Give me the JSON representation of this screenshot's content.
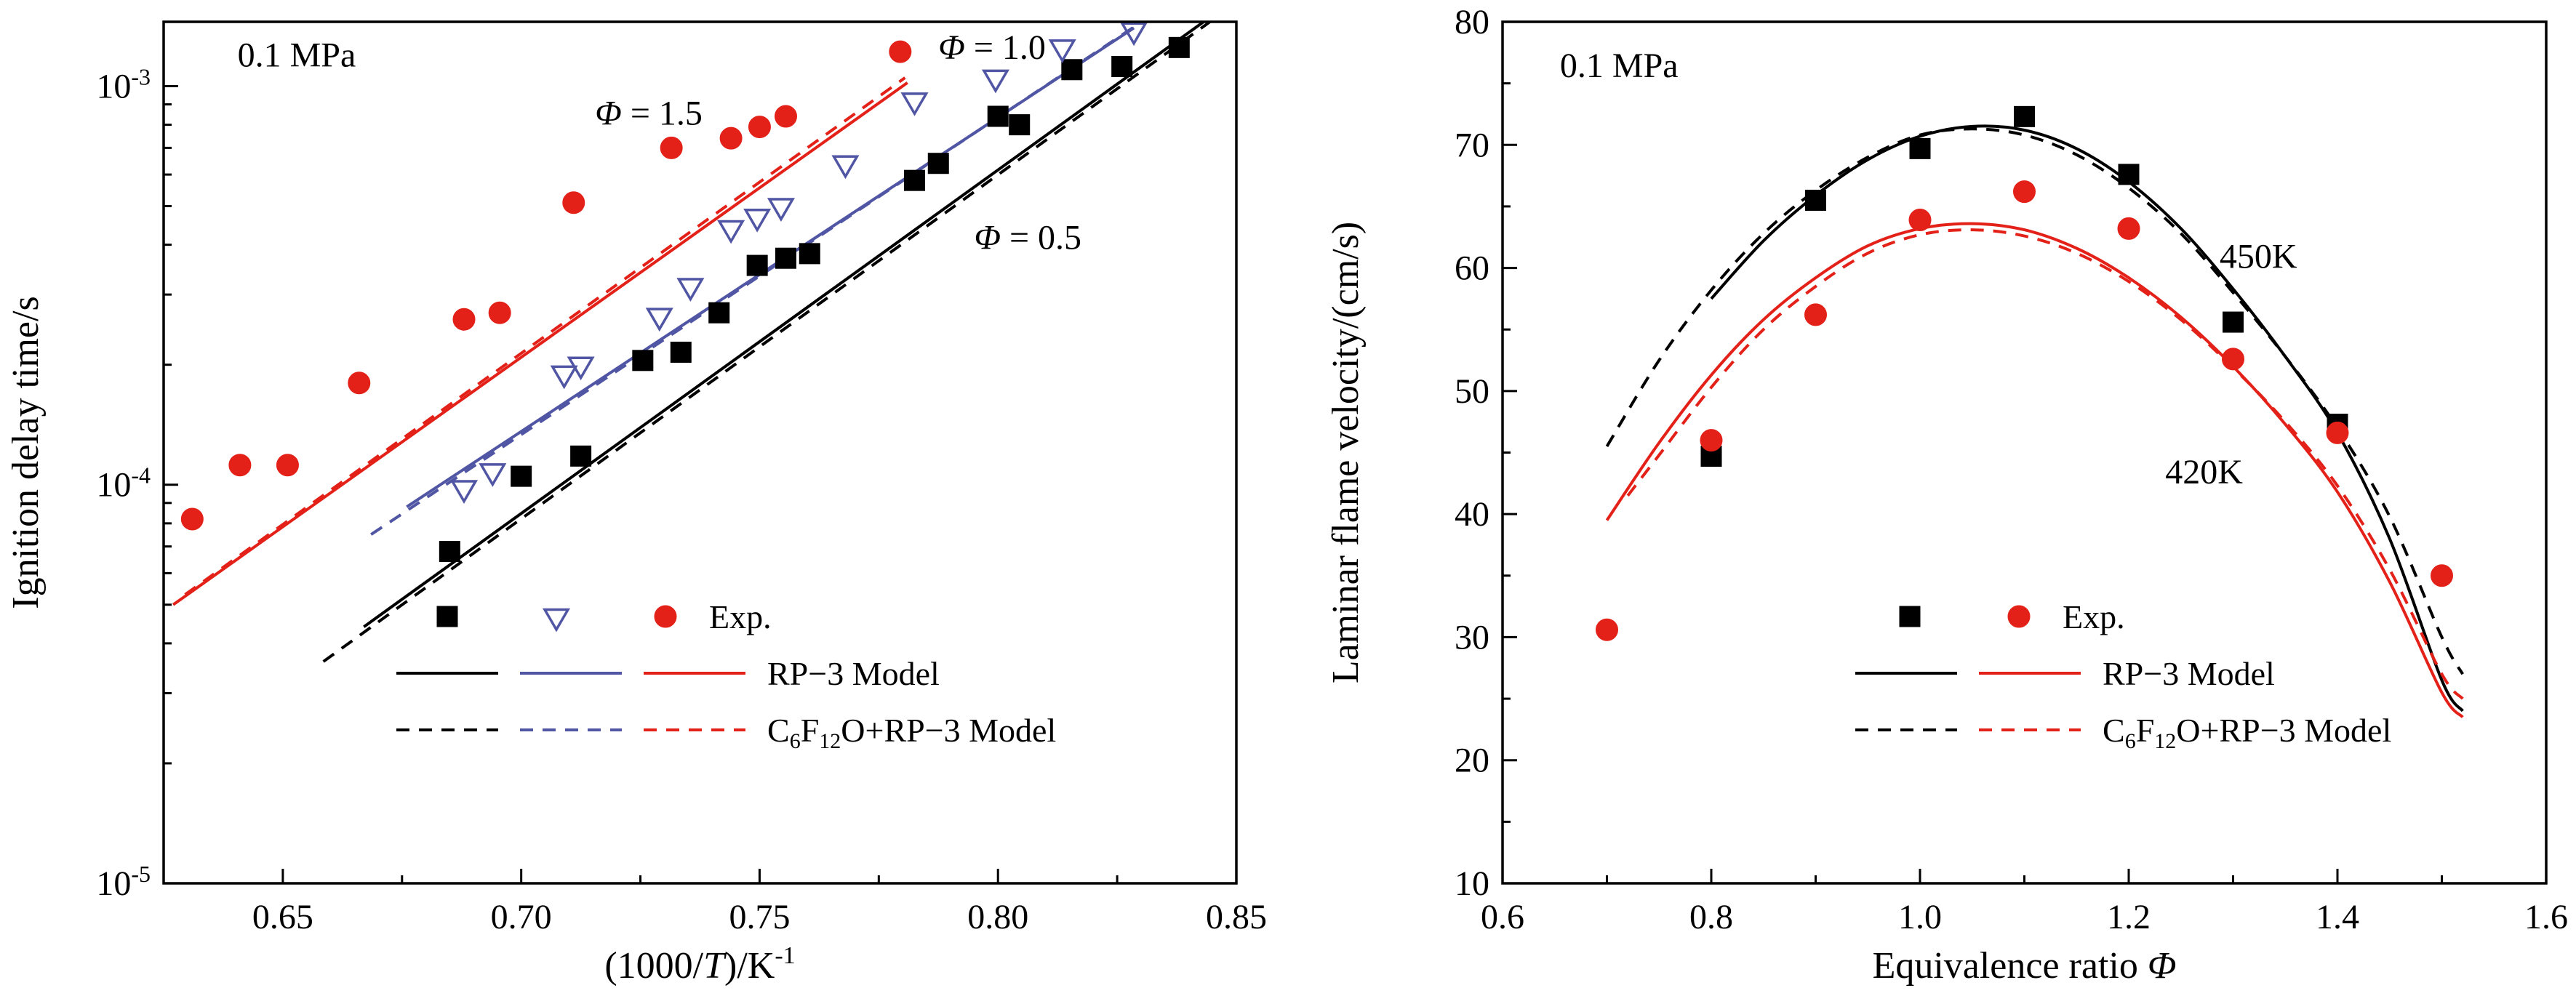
{
  "figure": {
    "background": "#ffffff"
  },
  "chart_data": [
    {
      "name": "ignition-delay",
      "type": "line+scatter",
      "x_axis": {
        "scale": "linear",
        "min": 0.625,
        "max": 0.85,
        "major_ticks": [
          0.65,
          0.7,
          0.75,
          0.8,
          0.85
        ],
        "tick_labels": [
          "0.65",
          "0.70",
          "0.75",
          "0.80",
          "0.85"
        ],
        "minor_ticks": [
          0.675,
          0.725,
          0.775,
          0.825
        ],
        "label": "(1000/*T*)/K^{-1}"
      },
      "y_axis": {
        "scale": "log",
        "min": 1e-05,
        "max": 0.00145,
        "major_ticks": [
          1e-05,
          0.0001,
          0.001
        ],
        "tick_labels": [
          "10^{-5}",
          "10^{-4}",
          "10^{-3}"
        ],
        "minor_ticks": [
          2e-05,
          3e-05,
          4e-05,
          5e-05,
          6e-05,
          7e-05,
          8e-05,
          9e-05,
          0.0002,
          0.0003,
          0.0004,
          0.0005,
          0.0006,
          0.0007,
          0.0008,
          0.0009
        ],
        "label": "Ignition delay time/s"
      },
      "series": [
        {
          "name": "phi05-rp3-model",
          "type": "line",
          "color": "#000000",
          "dash": "solid",
          "smooth": false,
          "points": [
            [
              0.667,
              4.4e-05
            ],
            [
              0.8455,
              0.00152
            ]
          ]
        },
        {
          "name": "phi05-c6f12o-model",
          "type": "line",
          "color": "#000000",
          "dash": "dashed",
          "smooth": false,
          "points": [
            [
              0.6585,
              3.6e-05
            ],
            [
              0.8455,
              0.00148
            ]
          ]
        },
        {
          "name": "phi10-rp3-model",
          "type": "line",
          "color": "#5056a4",
          "dash": "solid",
          "smooth": false,
          "points": [
            [
              0.676,
              8.8e-05
            ],
            [
              0.8285,
              0.0014
            ]
          ]
        },
        {
          "name": "phi10-c6f12o-model",
          "type": "line",
          "color": "#5056a4",
          "dash": "dashed",
          "smooth": false,
          "points": [
            [
              0.6685,
              7.5e-05
            ],
            [
              0.829,
              0.00142
            ]
          ]
        },
        {
          "name": "phi15-rp3-model",
          "type": "line",
          "color": "#e32119",
          "dash": "solid",
          "smooth": false,
          "points": [
            [
              0.627,
              5e-05
            ],
            [
              0.781,
              0.00102
            ]
          ]
        },
        {
          "name": "phi15-c6f12o-model",
          "type": "line",
          "color": "#e32119",
          "dash": "dashed",
          "smooth": false,
          "points": [
            [
              0.6295,
              5.3e-05
            ],
            [
              0.7805,
              0.00105
            ]
          ]
        },
        {
          "name": "phi05-exp",
          "type": "scatter",
          "marker": "square",
          "color": "#000000",
          "filled": true,
          "points": [
            [
              0.685,
              6.8e-05
            ],
            [
              0.7,
              0.000105
            ],
            [
              0.7125,
              0.000118
            ],
            [
              0.7255,
              0.000205
            ],
            [
              0.7335,
              0.000215
            ],
            [
              0.7415,
              0.00027
            ],
            [
              0.7495,
              0.000355
            ],
            [
              0.7555,
              0.00037
            ],
            [
              0.7605,
              0.00038
            ],
            [
              0.7825,
              0.00058
            ],
            [
              0.7875,
              0.00064
            ],
            [
              0.8,
              0.00084
            ],
            [
              0.8045,
              0.0008
            ],
            [
              0.8155,
              0.0011
            ],
            [
              0.826,
              0.00112
            ],
            [
              0.838,
              0.00125
            ]
          ]
        },
        {
          "name": "phi10-exp",
          "type": "scatter",
          "marker": "triangle-down",
          "color": "#5056a4",
          "filled": false,
          "points": [
            [
              0.688,
              9.8e-05
            ],
            [
              0.694,
              0.000108
            ],
            [
              0.709,
              0.00019
            ],
            [
              0.7125,
              0.0002
            ],
            [
              0.729,
              0.000265
            ],
            [
              0.7355,
              0.000315
            ],
            [
              0.744,
              0.00044
            ],
            [
              0.7495,
              0.00047
            ],
            [
              0.7545,
              0.0005
            ],
            [
              0.768,
              0.00064
            ],
            [
              0.7825,
              0.00092
            ],
            [
              0.7995,
              0.00105
            ],
            [
              0.8135,
              0.00125
            ],
            [
              0.8285,
              0.00138
            ]
          ]
        },
        {
          "name": "phi15-exp",
          "type": "scatter",
          "marker": "circle",
          "color": "#e32119",
          "filled": true,
          "points": [
            [
              0.631,
              8.2e-05
            ],
            [
              0.641,
              0.000112
            ],
            [
              0.651,
              0.000112
            ],
            [
              0.666,
              0.00018
            ],
            [
              0.688,
              0.00026
            ],
            [
              0.6955,
              0.00027
            ],
            [
              0.711,
              0.00051
            ],
            [
              0.7315,
              0.0007
            ],
            [
              0.744,
              0.00074
            ],
            [
              0.75,
              0.00079
            ],
            [
              0.7555,
              0.00084
            ],
            [
              0.7795,
              0.00122
            ]
          ]
        }
      ],
      "annotations": [
        {
          "text": "0.1 MPa",
          "x": 0.6405,
          "y": 0.00112,
          "color": "#000000"
        },
        {
          "text": "*Φ* = 1.0",
          "x": 0.7875,
          "y": 0.00117,
          "color": "#5056a4"
        },
        {
          "text": "*Φ* = 1.5",
          "x": 0.7155,
          "y": 0.0008,
          "color": "#e32119"
        },
        {
          "text": "*Φ* = 0.5",
          "x": 0.795,
          "y": 0.00039,
          "color": "#000000"
        }
      ],
      "legend": {
        "rows": [
          {
            "y": 848,
            "label": "Exp.",
            "label_x": 975,
            "markers": [
              {
                "marker": "square",
                "color": "#000000",
                "filled": true,
                "x": 615
              },
              {
                "marker": "triangle-down",
                "color": "#5056a4",
                "filled": false,
                "x": 765
              },
              {
                "marker": "circle",
                "color": "#e32119",
                "filled": true,
                "x": 915
              }
            ]
          },
          {
            "y": 926,
            "label": "RP−3 Model",
            "label_x": 1055,
            "lines": [
              {
                "color": "#000000",
                "dash": "solid",
                "x0": 545,
                "x1": 685
              },
              {
                "color": "#5056a4",
                "dash": "solid",
                "x0": 715,
                "x1": 855
              },
              {
                "color": "#e32119",
                "dash": "solid",
                "x0": 885,
                "x1": 1025
              }
            ]
          },
          {
            "y": 1004,
            "label": "C_{6}F_{12}O+RP−3 Model",
            "label_x": 1055,
            "lines": [
              {
                "color": "#000000",
                "dash": "dashed",
                "x0": 545,
                "x1": 685
              },
              {
                "color": "#5056a4",
                "dash": "dashed",
                "x0": 715,
                "x1": 855
              },
              {
                "color": "#e32119",
                "dash": "dashed",
                "x0": 885,
                "x1": 1025
              }
            ]
          }
        ]
      }
    },
    {
      "name": "laminar-flame-velocity",
      "type": "line+scatter",
      "x_axis": {
        "scale": "linear",
        "min": 0.6,
        "max": 1.6,
        "major_ticks": [
          0.6,
          0.8,
          1.0,
          1.2,
          1.4,
          1.6
        ],
        "tick_labels": [
          "0.6",
          "0.8",
          "1.0",
          "1.2",
          "1.4",
          "1.6"
        ],
        "minor_ticks": [
          0.7,
          0.9,
          1.1,
          1.3,
          1.5
        ],
        "label": "Equivalence ratio *Φ*"
      },
      "y_axis": {
        "scale": "linear",
        "min": 10,
        "max": 80,
        "major_ticks": [
          10,
          20,
          30,
          40,
          50,
          60,
          70,
          80
        ],
        "tick_labels": [
          "10",
          "20",
          "30",
          "40",
          "50",
          "60",
          "70",
          "80"
        ],
        "minor_ticks": [
          15,
          25,
          35,
          45,
          55,
          65,
          75
        ],
        "label": "Laminar flame velocity/(cm/s)"
      },
      "series": [
        {
          "name": "450k-c6f12o-model",
          "type": "line",
          "color": "#000000",
          "dash": "dashed",
          "smooth": true,
          "points": [
            [
              0.7,
              45.5
            ],
            [
              0.75,
              52.5
            ],
            [
              0.8,
              58.2
            ],
            [
              0.85,
              62.8
            ],
            [
              0.9,
              66.3
            ],
            [
              0.95,
              69.0
            ],
            [
              1.0,
              70.8
            ],
            [
              1.05,
              71.3
            ],
            [
              1.1,
              70.8
            ],
            [
              1.15,
              69.2
            ],
            [
              1.2,
              66.5
            ],
            [
              1.25,
              62.8
            ],
            [
              1.3,
              58.0
            ],
            [
              1.35,
              52.8
            ],
            [
              1.4,
              47.0
            ],
            [
              1.45,
              39.8
            ],
            [
              1.5,
              30.0
            ],
            [
              1.52,
              27.0
            ]
          ]
        },
        {
          "name": "450k-rp3-model",
          "type": "line",
          "color": "#000000",
          "dash": "solid",
          "smooth": true,
          "points": [
            [
              0.8,
              57.5
            ],
            [
              0.85,
              62.2
            ],
            [
              0.9,
              65.9
            ],
            [
              0.95,
              68.8
            ],
            [
              1.0,
              70.7
            ],
            [
              1.05,
              71.5
            ],
            [
              1.1,
              71.2
            ],
            [
              1.15,
              69.7
            ],
            [
              1.2,
              67.0
            ],
            [
              1.25,
              63.2
            ],
            [
              1.3,
              58.3
            ],
            [
              1.35,
              52.8
            ],
            [
              1.4,
              46.6
            ],
            [
              1.45,
              38.0
            ],
            [
              1.5,
              26.5
            ],
            [
              1.52,
              24.0
            ]
          ]
        },
        {
          "name": "420k-c6f12o-model",
          "type": "line",
          "color": "#e32119",
          "dash": "dashed",
          "smooth": true,
          "points": [
            [
              0.72,
              41.5
            ],
            [
              0.75,
              44.8
            ],
            [
              0.8,
              50.3
            ],
            [
              0.85,
              55.0
            ],
            [
              0.9,
              58.5
            ],
            [
              0.95,
              61.2
            ],
            [
              1.0,
              62.7
            ],
            [
              1.05,
              63.1
            ],
            [
              1.1,
              62.6
            ],
            [
              1.15,
              61.2
            ],
            [
              1.2,
              58.9
            ],
            [
              1.25,
              55.8
            ],
            [
              1.3,
              51.9
            ],
            [
              1.35,
              47.5
            ],
            [
              1.4,
              42.3
            ],
            [
              1.45,
              35.5
            ],
            [
              1.5,
              27.0
            ],
            [
              1.52,
              25.0
            ]
          ]
        },
        {
          "name": "420k-rp3-model",
          "type": "line",
          "color": "#e32119",
          "dash": "solid",
          "smooth": true,
          "points": [
            [
              0.7,
              39.5
            ],
            [
              0.75,
              45.8
            ],
            [
              0.8,
              51.3
            ],
            [
              0.85,
              55.8
            ],
            [
              0.9,
              59.2
            ],
            [
              0.95,
              61.8
            ],
            [
              1.0,
              63.2
            ],
            [
              1.05,
              63.6
            ],
            [
              1.1,
              63.1
            ],
            [
              1.15,
              61.6
            ],
            [
              1.2,
              59.2
            ],
            [
              1.25,
              56.0
            ],
            [
              1.3,
              52.0
            ],
            [
              1.35,
              47.3
            ],
            [
              1.4,
              41.8
            ],
            [
              1.45,
              34.5
            ],
            [
              1.5,
              25.5
            ],
            [
              1.52,
              23.5
            ]
          ]
        },
        {
          "name": "450k-exp",
          "type": "scatter",
          "marker": "square",
          "color": "#000000",
          "filled": true,
          "points": [
            [
              0.8,
              44.7
            ],
            [
              0.9,
              65.5
            ],
            [
              1.0,
              69.7
            ],
            [
              1.1,
              72.3
            ],
            [
              1.2,
              67.6
            ],
            [
              1.3,
              55.6
            ],
            [
              1.4,
              47.3
            ]
          ]
        },
        {
          "name": "420k-exp",
          "type": "scatter",
          "marker": "circle",
          "color": "#e32119",
          "filled": true,
          "points": [
            [
              0.7,
              30.6
            ],
            [
              0.8,
              46.0
            ],
            [
              0.9,
              56.2
            ],
            [
              1.0,
              63.9
            ],
            [
              1.1,
              66.2
            ],
            [
              1.2,
              63.2
            ],
            [
              1.3,
              52.6
            ],
            [
              1.4,
              46.6
            ],
            [
              1.5,
              35.0
            ]
          ]
        }
      ],
      "annotations": [
        {
          "text": "0.1 MPa",
          "x": 0.655,
          "y": 75.5,
          "color": "#000000"
        },
        {
          "text": "450K",
          "x": 1.287,
          "y": 60.0,
          "color": "#000000"
        },
        {
          "text": "420K",
          "x": 1.235,
          "y": 42.5,
          "color": "#e32119"
        }
      ],
      "legend": {
        "rows": [
          {
            "y": 848,
            "label": "Exp.",
            "label_x": 1065,
            "markers": [
              {
                "marker": "square",
                "color": "#000000",
                "filled": true,
                "x": 855
              },
              {
                "marker": "circle",
                "color": "#e32119",
                "filled": true,
                "x": 1005
              }
            ]
          },
          {
            "y": 926,
            "label": "RP−3 Model",
            "label_x": 1120,
            "lines": [
              {
                "color": "#000000",
                "dash": "solid",
                "x0": 780,
                "x1": 920
              },
              {
                "color": "#e32119",
                "dash": "solid",
                "x0": 950,
                "x1": 1090
              }
            ]
          },
          {
            "y": 1004,
            "label": "C_{6}F_{12}O+RP−3 Model",
            "label_x": 1120,
            "lines": [
              {
                "color": "#000000",
                "dash": "dashed",
                "x0": 780,
                "x1": 920
              },
              {
                "color": "#e32119",
                "dash": "dashed",
                "x0": 950,
                "x1": 1090
              }
            ]
          }
        ]
      }
    }
  ]
}
